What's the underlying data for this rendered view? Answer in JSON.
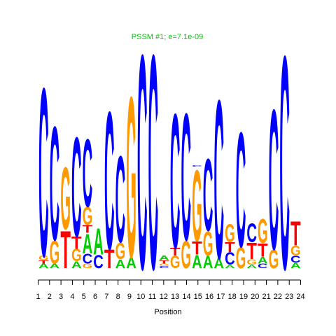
{
  "chart_data": {
    "type": "sequence-logo",
    "title": "PSSM #1; e=7.1e-09",
    "xlabel": "Position",
    "ylabel": "",
    "positions": [
      "1",
      "2",
      "3",
      "4",
      "5",
      "6",
      "7",
      "8",
      "9",
      "10",
      "11",
      "12",
      "13",
      "14",
      "15",
      "16",
      "17",
      "18",
      "19",
      "20",
      "21",
      "22",
      "23",
      "24"
    ],
    "ylim": [
      0,
      2
    ],
    "letter_colors": {
      "A": "#00cc00",
      "C": "#0000ff",
      "G": "#ff9900",
      "T": "#ff0000"
    },
    "title_color": "#00cc00",
    "columns": [
      [
        {
          "l": "A",
          "h": 0.04
        },
        {
          "l": "T",
          "h": 0.03
        },
        {
          "l": "G",
          "h": 0.04
        },
        {
          "l": "C",
          "h": 1.54
        }
      ],
      [
        {
          "l": "A",
          "h": 0.04
        },
        {
          "l": "G",
          "h": 0.21
        },
        {
          "l": "C",
          "h": 1.04
        }
      ],
      [
        {
          "l": "T",
          "h": 0.34
        },
        {
          "l": "G",
          "h": 0.57
        }
      ],
      [
        {
          "l": "A",
          "h": 0.06
        },
        {
          "l": "G",
          "h": 0.11
        },
        {
          "l": "T",
          "h": 0.11
        },
        {
          "l": "C",
          "h": 0.91
        }
      ],
      [
        {
          "l": "G",
          "h": 0.04
        },
        {
          "l": "C",
          "h": 0.09
        },
        {
          "l": "A",
          "h": 0.18
        },
        {
          "l": "T",
          "h": 0.07
        },
        {
          "l": "G",
          "h": 0.16
        },
        {
          "l": "C",
          "h": 0.62
        }
      ],
      [
        {
          "l": "C",
          "h": 0.12
        },
        {
          "l": "A",
          "h": 0.24
        }
      ],
      [
        {
          "l": "T",
          "h": 0.17
        },
        {
          "l": "C",
          "h": 1.26
        }
      ],
      [
        {
          "l": "A",
          "h": 0.08
        },
        {
          "l": "G",
          "h": 0.15
        },
        {
          "l": "C",
          "h": 0.79
        }
      ],
      [
        {
          "l": "A",
          "h": 0.1
        },
        {
          "l": "G",
          "h": 1.47
        }
      ],
      [
        {
          "l": "C",
          "h": 1.96
        }
      ],
      [
        {
          "l": "C",
          "h": 1.96
        }
      ],
      [
        {
          "l": "C",
          "h": 0.02
        },
        {
          "l": "G",
          "h": 0.02
        },
        {
          "l": "T",
          "h": 0.03
        },
        {
          "l": "A",
          "h": 0.04
        }
      ],
      [
        {
          "l": "G",
          "h": 0.11
        },
        {
          "l": "T",
          "h": 0.07
        },
        {
          "l": "C",
          "h": 1.23
        }
      ],
      [
        {
          "l": "G",
          "h": 0.25
        },
        {
          "l": "C",
          "h": 1.16
        }
      ],
      [
        {
          "l": "A",
          "h": 0.12
        },
        {
          "l": "T",
          "h": 0.12
        },
        {
          "l": "G",
          "h": 0.65
        },
        {
          "l": "C",
          "h": 0.01
        }
      ],
      [
        {
          "l": "A",
          "h": 0.11
        },
        {
          "l": "G",
          "h": 0.22
        },
        {
          "l": "C",
          "h": 0.66
        }
      ],
      [
        {
          "l": "A",
          "h": 0.09
        },
        {
          "l": "C",
          "h": 1.45
        }
      ],
      [
        {
          "l": "A",
          "h": 0.03
        },
        {
          "l": "C",
          "h": 0.11
        },
        {
          "l": "T",
          "h": 0.09
        },
        {
          "l": "G",
          "h": 0.16
        }
      ],
      [
        {
          "l": "G",
          "h": 0.19
        },
        {
          "l": "C",
          "h": 1.05
        }
      ],
      [
        {
          "l": "A",
          "h": 0.03
        },
        {
          "l": "G",
          "h": 0.05
        },
        {
          "l": "T",
          "h": 0.15
        },
        {
          "l": "C",
          "h": 0.17
        }
      ],
      [
        {
          "l": "C",
          "h": 0.04
        },
        {
          "l": "A",
          "h": 0.06
        },
        {
          "l": "T",
          "h": 0.12
        },
        {
          "l": "G",
          "h": 0.22
        }
      ],
      [
        {
          "l": "G",
          "h": 0.17
        },
        {
          "l": "C",
          "h": 1.28
        }
      ],
      [
        {
          "l": "C",
          "h": 1.95
        }
      ],
      [
        {
          "l": "A",
          "h": 0.05
        },
        {
          "l": "C",
          "h": 0.06
        },
        {
          "l": "G",
          "h": 0.09
        },
        {
          "l": "T",
          "h": 0.22
        }
      ]
    ]
  }
}
